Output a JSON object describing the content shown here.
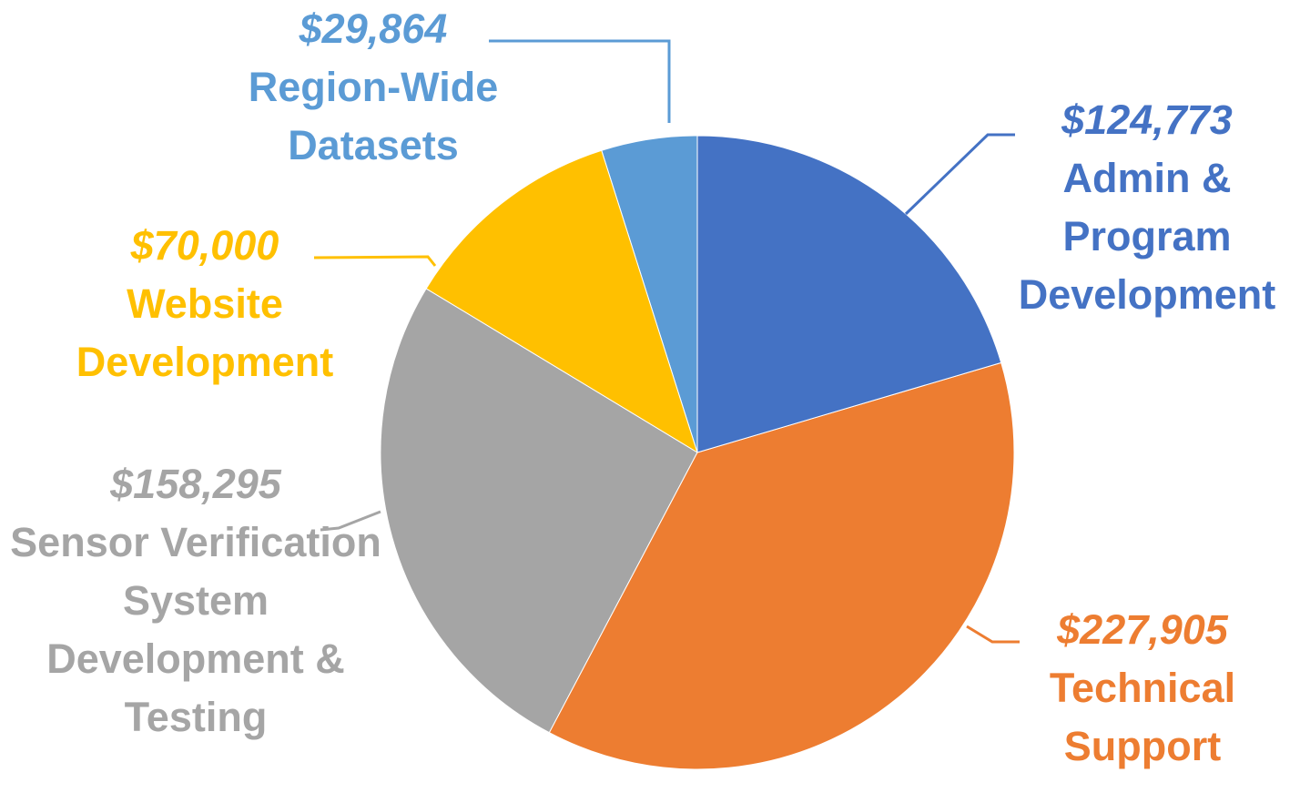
{
  "chart_data": {
    "type": "pie",
    "categories": [
      "Admin & Program Development",
      "Technical Support",
      "Sensor Verification System Development & Testing",
      "Website Development",
      "Region-Wide Datasets"
    ],
    "values": [
      124773,
      227905,
      158295,
      70000,
      29864
    ],
    "value_labels": [
      "$124,773",
      "$227,905",
      "$158,295",
      "$70,000",
      "$29,864"
    ],
    "colors": [
      "#4472c4",
      "#ed7d31",
      "#a5a5a5",
      "#ffc000",
      "#5b9bd5"
    ]
  }
}
